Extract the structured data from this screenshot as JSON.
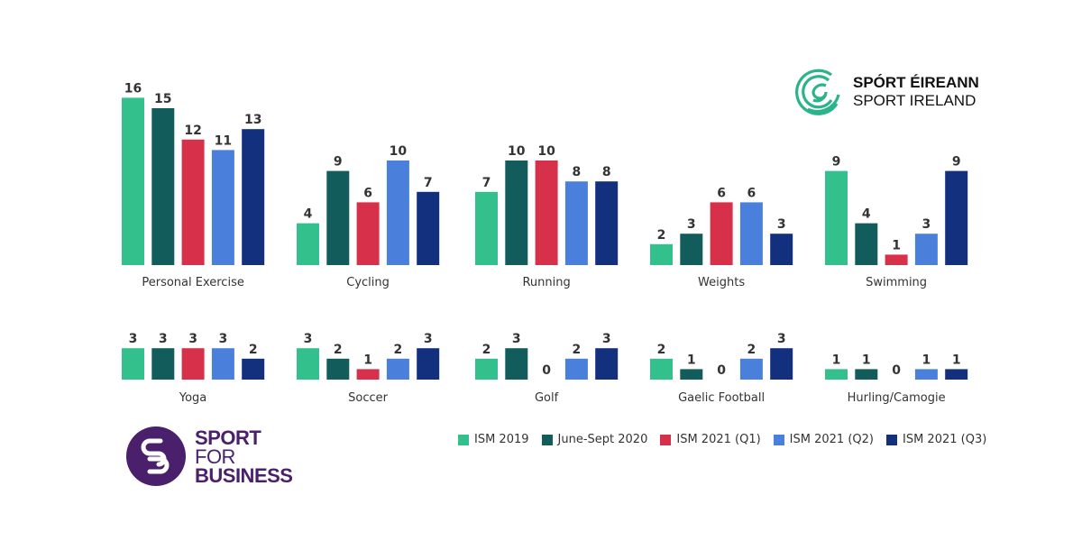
{
  "chart_data": {
    "type": "bar",
    "grid": false,
    "legend_placement": "bottom-right",
    "series": [
      {
        "name": "ISM 2019",
        "color": "#34c08c"
      },
      {
        "name": "June-Sept 2020",
        "color": "#135c5c"
      },
      {
        "name": "ISM 2021 (Q1)",
        "color": "#d7304a"
      },
      {
        "name": "ISM 2021 (Q2)",
        "color": "#4a80dc"
      },
      {
        "name": "ISM 2021 (Q3)",
        "color": "#13307e"
      }
    ],
    "groups": [
      {
        "category": "Personal Exercise",
        "values": [
          16,
          15,
          12,
          11,
          13
        ]
      },
      {
        "category": "Cycling",
        "values": [
          4,
          9,
          6,
          10,
          7
        ]
      },
      {
        "category": "Running",
        "values": [
          7,
          10,
          10,
          8,
          8
        ]
      },
      {
        "category": "Weights",
        "values": [
          2,
          3,
          6,
          6,
          3
        ]
      },
      {
        "category": "Swimming",
        "values": [
          9,
          4,
          1,
          3,
          9
        ]
      },
      {
        "category": "Yoga",
        "values": [
          3,
          3,
          3,
          3,
          2
        ]
      },
      {
        "category": "Soccer",
        "values": [
          3,
          2,
          1,
          2,
          3
        ]
      },
      {
        "category": "Golf",
        "values": [
          2,
          3,
          0,
          2,
          3
        ]
      },
      {
        "category": "Gaelic Football",
        "values": [
          2,
          1,
          0,
          2,
          3
        ]
      },
      {
        "category": "Hurling/Camogie",
        "values": [
          1,
          1,
          0,
          1,
          1
        ]
      }
    ]
  },
  "logos": {
    "sport_ireland": {
      "line1": "SPÓRT ÉIREANN",
      "line2": "SPORT IRELAND",
      "color": "#2bb38a"
    },
    "sport_for_business": {
      "line1": "SPORT",
      "line2": "FOR",
      "line3": "BUSINESS",
      "color": "#4a1f6b"
    }
  }
}
